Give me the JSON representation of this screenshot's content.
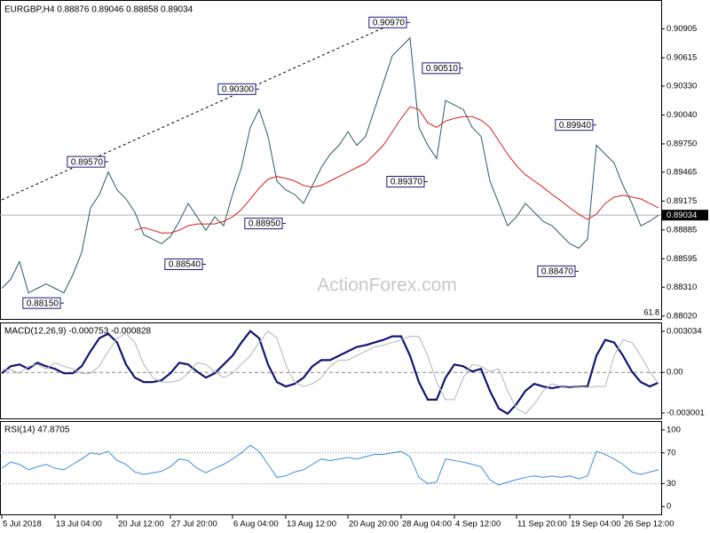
{
  "chart_data": [
    {
      "type": "line",
      "title": "EURGBP,H4  0.88876 0.89046 0.88858 0.89034",
      "ylim": [
        0.88,
        0.9116
      ],
      "yticks": [
        0.90905,
        0.90615,
        {
          "value": 0.9033,
          "label": "0.90330"
        },
        {
          "value": 0.9004,
          "label": "0.90040"
        },
        {
          "value": 0.8975,
          "label": "0.89750"
        },
        0.89465,
        0.89175,
        0.88885,
        0.88595,
        {
          "value": 0.8831,
          "label": "0.88310"
        },
        {
          "value": 0.8802,
          "label": "0.88020"
        }
      ],
      "series": [
        {
          "color": "#2e5a66",
          "values": [
            0.88298,
            0.88388,
            0.88568,
            0.88253,
            0.88298,
            0.88343,
            0.88298,
            0.88253,
            0.88433,
            0.88657,
            0.89107,
            0.89242,
            0.89467,
            0.89287,
            0.89197,
            0.89062,
            0.88837,
            0.88792,
            0.88747,
            0.88819,
            0.88972,
            0.89152,
            0.89017,
            0.88882,
            0.89017,
            0.88927,
            0.89242,
            0.89512,
            0.89916,
            0.90096,
            0.89826,
            0.89377,
            0.89287,
            0.89242,
            0.89152,
            0.89332,
            0.89512,
            0.89646,
            0.89736,
            0.89871,
            0.89736,
            0.89826,
            0.90096,
            0.90366,
            0.90635,
            0.90725,
            0.90815,
            0.89916,
            0.89736,
            0.89601,
            0.90186,
            0.90141,
            0.90096,
            0.89916,
            0.89826,
            0.89377,
            0.89152,
            0.88927,
            0.89017,
            0.89152,
            0.89062,
            0.88972,
            0.88927,
            0.88837,
            0.88747,
            0.88702,
            0.88792,
            0.89736,
            0.89646,
            0.89556,
            0.89332,
            0.89152,
            0.88927,
            0.88972,
            0.89034
          ]
        },
        {
          "color": "#d42020",
          "values": [
            null,
            null,
            null,
            null,
            null,
            null,
            null,
            null,
            null,
            null,
            null,
            null,
            null,
            null,
            null,
            0.88882,
            0.88909,
            0.88882,
            0.88855,
            0.88855,
            0.88882,
            0.88927,
            0.88945,
            0.88945,
            0.88945,
            0.88972,
            0.89017,
            0.89089,
            0.89197,
            0.89305,
            0.89395,
            0.89422,
            0.89404,
            0.89377,
            0.89332,
            0.89314,
            0.89332,
            0.89377,
            0.89422,
            0.89467,
            0.89512,
            0.89556,
            0.89646,
            0.89736,
            0.89871,
            0.90006,
            0.90123,
            0.90096,
            0.89961,
            0.89916,
            0.89979,
            0.90006,
            0.90024,
            0.90024,
            0.89988,
            0.89916,
            0.89781,
            0.89646,
            0.8953,
            0.8944,
            0.89377,
            0.89314,
            0.89242,
            0.89179,
            0.89107,
            0.89044,
            0.8899,
            0.89044,
            0.89152,
            0.89215,
            0.89233,
            0.89215,
            0.89197,
            0.89152,
            0.89107
          ]
        }
      ],
      "annotations": [
        {
          "text": "0.90970",
          "index": 46,
          "value": 0.9097
        },
        {
          "text": "0.90300",
          "index": 29,
          "value": 0.903
        },
        {
          "text": "0.89570",
          "index": 12,
          "value": 0.8957
        },
        {
          "text": "0.90510",
          "index": 52,
          "value": 0.9051
        },
        {
          "text": "0.89940",
          "index": 67,
          "value": 0.8994
        },
        {
          "text": "0.89370",
          "index": 48,
          "value": 0.8937
        },
        {
          "text": "0.88950",
          "index": 32,
          "value": 0.8895
        },
        {
          "text": "0.88540",
          "index": 23,
          "value": 0.8854
        },
        {
          "text": "0.88470",
          "index": 65,
          "value": 0.8847
        },
        {
          "text": "0.88150",
          "index": 7,
          "value": 0.8815
        }
      ],
      "last_price": {
        "value": 0.89034,
        "label": "0.89034"
      },
      "watermark": "ActionForex.com",
      "note": "61.8"
    },
    {
      "type": "line",
      "title": "MACD(12,26,9) -0.000753 -0.000828",
      "ylim": [
        -0.00333,
        0.00349
      ],
      "yticks": [
        0.003034,
        {
          "value": 0,
          "label": "0.00"
        },
        -0.003001
      ],
      "levels": [
        0
      ],
      "series": [
        {
          "color": "#141473",
          "values": [
            -6.5e-05,
            0.000454,
            0.000584,
            0.00026,
            0.000714,
            0.000454,
            0.00026,
            -6.5e-05,
            -6.5e-05,
            0.000454,
            0.001557,
            0.002531,
            0.002855,
            0.002206,
            0.000584,
            -0.000389,
            -0.000714,
            -0.000714,
            -0.000584,
            -6.5e-05,
            0.000714,
            0.000584,
            6.5e-05,
            -0.000389,
            -6.5e-05,
            0.000584,
            0.001233,
            0.002206,
            0.00305,
            0.002531,
            0.000584,
            -0.000714,
            -0.001038,
            -0.000844,
            -0.000389,
            0.000454,
            0.000909,
            0.000909,
            0.001233,
            0.001557,
            0.001882,
            0.002012,
            0.002206,
            0.002401,
            0.002661,
            0.002661,
            0.001233,
            -0.000714,
            -0.002012,
            -0.002012,
            -0.000389,
            0.000584,
            0.000454,
            6.5e-05,
            0.00026,
            -0.001363,
            -0.002661,
            -0.00305,
            -0.002336,
            -0.001363,
            -0.000844,
            -0.001038,
            -0.001168,
            -0.001038,
            -0.001103,
            -0.001038,
            -0.001038,
            0.001233,
            0.002401,
            0.002206,
            0.001233,
            6.5e-05,
            -0.000714,
            -0.001038,
            -0.000753
          ]
        },
        {
          "color": "#b4b4b4",
          "values": [
            0.0002,
            0.0002,
            -6.5e-05,
            0.000454,
            0.000584,
            0.00026,
            0.000714,
            0.000454,
            0.00026,
            -6.5e-05,
            -6.5e-05,
            0.000454,
            0.001557,
            0.002531,
            0.002855,
            0.002206,
            0.000584,
            -0.000389,
            -0.000714,
            -0.000714,
            -0.000584,
            -6.5e-05,
            0.000714,
            0.000584,
            6.5e-05,
            -0.000389,
            -6.5e-05,
            0.000584,
            0.001233,
            0.002206,
            0.00305,
            0.002531,
            0.000584,
            -0.000714,
            -0.001038,
            -0.000844,
            -0.000389,
            0.000454,
            0.000909,
            0.000909,
            0.001233,
            0.001557,
            0.001882,
            0.002012,
            0.002206,
            0.002401,
            0.002661,
            0.002661,
            0.001233,
            -0.000714,
            -0.002012,
            -0.002012,
            -0.000389,
            0.000584,
            0.000454,
            6.5e-05,
            0.00026,
            -0.001363,
            -0.002661,
            -0.00305,
            -0.002336,
            -0.001363,
            -0.000844,
            -0.001038,
            -0.001168,
            -0.001038,
            -0.001103,
            -0.001038,
            -0.001038,
            0.001233,
            0.002401,
            0.002206,
            0.001233,
            6.5e-05,
            -0.000828
          ]
        }
      ]
    },
    {
      "type": "line",
      "title": "RSI(14) 47.8705",
      "ylim": [
        -9,
        108
      ],
      "yticks": [
        100,
        70,
        30,
        0
      ],
      "levels": [
        70,
        30
      ],
      "categories": [
        "5 Jul 2018",
        null,
        null,
        null,
        null,
        null,
        "13 Jul 04:00",
        null,
        null,
        null,
        null,
        null,
        null,
        "20 Jul 12:00",
        null,
        null,
        null,
        null,
        null,
        "27 Jul 20:00",
        null,
        null,
        null,
        null,
        null,
        null,
        "6 Aug 04:00",
        null,
        null,
        null,
        null,
        null,
        "13 Aug 12:00",
        null,
        null,
        null,
        null,
        null,
        null,
        "20 Aug 20:00",
        null,
        null,
        null,
        null,
        null,
        "28 Aug 04:00",
        null,
        null,
        null,
        null,
        null,
        "4 Sep 12:00",
        null,
        null,
        null,
        null,
        null,
        null,
        "11 Sep 20:00",
        null,
        null,
        null,
        null,
        null,
        "19 Sep 04:00",
        null,
        null,
        null,
        null,
        null,
        "26 Sep 12:00",
        null,
        null,
        null,
        null
      ],
      "series": [
        {
          "color": "#3c8fe0",
          "values": [
            50,
            58,
            55,
            48,
            52,
            55,
            50,
            48,
            55,
            62,
            70,
            68,
            72,
            60,
            55,
            45,
            42,
            44,
            46,
            52,
            62,
            60,
            50,
            44,
            50,
            55,
            62,
            70,
            80,
            72,
            55,
            38,
            40,
            45,
            48,
            55,
            62,
            60,
            62,
            64,
            62,
            65,
            68,
            68,
            70,
            72,
            65,
            38,
            30,
            32,
            62,
            60,
            58,
            55,
            52,
            35,
            28,
            32,
            35,
            38,
            40,
            38,
            40,
            38,
            40,
            36,
            40,
            72,
            68,
            62,
            55,
            45,
            42,
            45,
            47.8705
          ]
        }
      ]
    }
  ]
}
